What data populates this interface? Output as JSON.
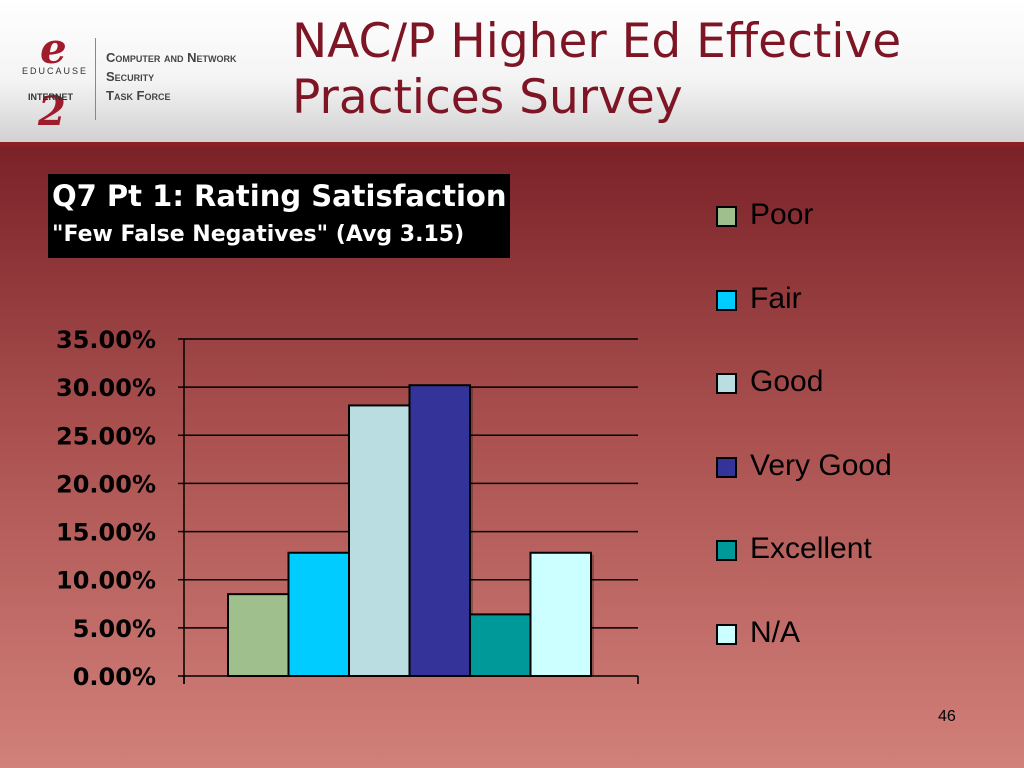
{
  "header": {
    "title_line1": "NAC/P Higher Ed Effective",
    "title_line2": "Practices Survey",
    "logo": {
      "e": "e",
      "educause": "EDUCAUSE",
      "internet": "INTERNET",
      "two": "2",
      "line1": "Computer and Network",
      "line2": "Security",
      "line3": "Task Force"
    }
  },
  "chart_data": {
    "type": "bar",
    "title": "Q7 Pt 1: Rating Satisfaction",
    "subtitle": "\"Few False Negatives\"  (Avg 3.15)",
    "series": [
      {
        "name": "Poor",
        "value": 8.5,
        "color": "#9fc08c"
      },
      {
        "name": "Fair",
        "value": 12.8,
        "color": "#00ccff"
      },
      {
        "name": "Good",
        "value": 28.1,
        "color": "#b9dde0"
      },
      {
        "name": "Very Good",
        "value": 30.2,
        "color": "#333399"
      },
      {
        "name": "Excellent",
        "value": 6.4,
        "color": "#009999"
      },
      {
        "name": "N/A",
        "value": 12.8,
        "color": "#ccffff"
      }
    ],
    "ylim": [
      0,
      35
    ],
    "yticks": [
      "0.00%",
      "5.00%",
      "10.00%",
      "15.00%",
      "20.00%",
      "25.00%",
      "30.00%",
      "35.00%"
    ],
    "grid": true,
    "legend_position": "right"
  },
  "page_number": "46"
}
